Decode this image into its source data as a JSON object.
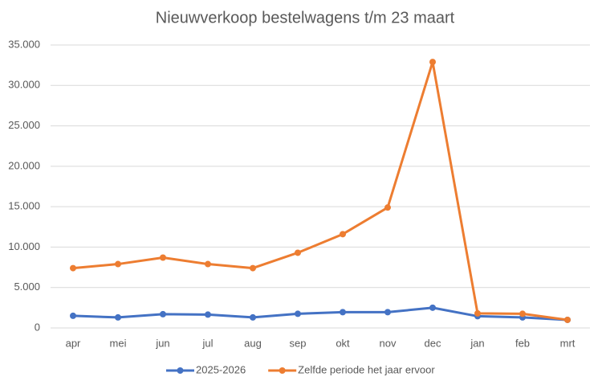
{
  "chart_data": {
    "type": "line",
    "title": "Nieuwverkoop bestelwagens t/m 23 maart",
    "categories": [
      "apr",
      "mei",
      "jun",
      "jul",
      "aug",
      "sep",
      "okt",
      "nov",
      "dec",
      "jan",
      "feb",
      "mrt"
    ],
    "series": [
      {
        "name": "2025-2026",
        "color": "#4472c4",
        "values": [
          1500,
          1300,
          1700,
          1650,
          1300,
          1750,
          1950,
          1950,
          2500,
          1450,
          1300,
          1000
        ]
      },
      {
        "name": "Zelfde periode het jaar ervoor",
        "color": "#ed7d31",
        "values": [
          7400,
          7900,
          8700,
          7900,
          7400,
          9300,
          11600,
          14900,
          32900,
          1800,
          1750,
          1000
        ]
      }
    ],
    "ylim": [
      0,
      35000
    ],
    "yticks": [
      0,
      {
        "value": 5000,
        "label": "5.000"
      },
      {
        "value": 10000,
        "label": "10.000"
      },
      {
        "value": 15000,
        "label": "15.000"
      },
      {
        "value": 20000,
        "label": "20.000"
      },
      {
        "value": 25000,
        "label": "25.000"
      },
      {
        "value": 30000,
        "label": "30.000"
      },
      {
        "value": 35000,
        "label": "35.000"
      }
    ],
    "grid": true,
    "legend": "bottom"
  }
}
